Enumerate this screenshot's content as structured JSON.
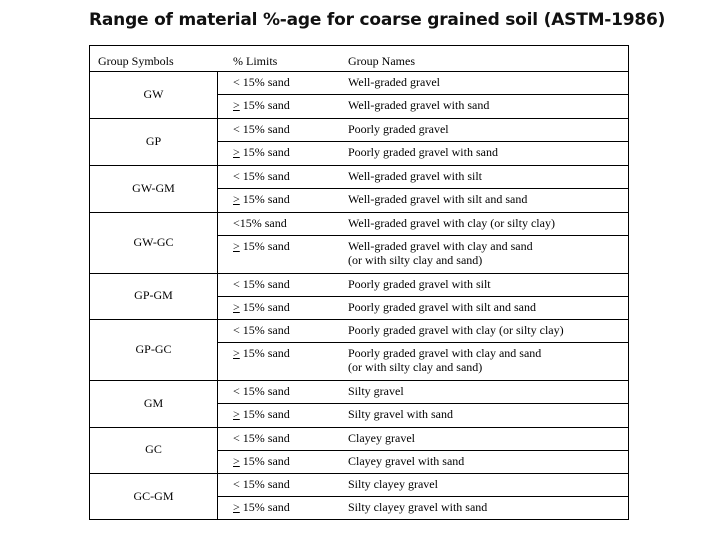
{
  "title": "Range of material %-age for coarse grained soil (ASTM-1986)",
  "headers": {
    "symbols": "Group Symbols",
    "limits": "% Limits",
    "names": "Group Names"
  },
  "groups": [
    {
      "symbol": "GW",
      "rows": [
        {
          "limit": "< 15% sand",
          "name": [
            "Well-graded gravel"
          ]
        },
        {
          "limit": "≥ 15% sand",
          "name": [
            "Well-graded gravel with sand"
          ]
        }
      ]
    },
    {
      "symbol": "GP",
      "rows": [
        {
          "limit": "< 15% sand",
          "name": [
            "Poorly graded gravel"
          ]
        },
        {
          "limit": "≥ 15% sand",
          "name": [
            "Poorly graded gravel with sand"
          ]
        }
      ]
    },
    {
      "symbol": "GW-GM",
      "rows": [
        {
          "limit": "< 15% sand",
          "name": [
            "Well-graded gravel with silt"
          ]
        },
        {
          "limit": "≥ 15% sand",
          "name": [
            "Well-graded gravel with silt and sand"
          ]
        }
      ]
    },
    {
      "symbol": "GW-GC",
      "rows": [
        {
          "limit": "<15% sand",
          "name": [
            "Well-graded gravel with clay (or silty clay)"
          ]
        },
        {
          "limit": "≥ 15% sand",
          "name": [
            "Well-graded gravel with clay and sand",
            "(or with silty clay and sand)"
          ]
        }
      ]
    },
    {
      "symbol": "GP-GM",
      "rows": [
        {
          "limit": "< 15% sand",
          "name": [
            "Poorly graded gravel with silt"
          ]
        },
        {
          "limit": "≥ 15% sand",
          "name": [
            "Poorly graded gravel with silt and sand"
          ]
        }
      ]
    },
    {
      "symbol": "GP-GC",
      "rows": [
        {
          "limit": "< 15% sand",
          "name": [
            "Poorly graded gravel with clay (or silty clay)"
          ]
        },
        {
          "limit": "≥ 15% sand",
          "name": [
            "Poorly graded gravel with clay and sand",
            "(or with silty clay and sand)"
          ]
        }
      ]
    },
    {
      "symbol": "GM",
      "rows": [
        {
          "limit": "< 15% sand",
          "name": [
            "Silty gravel"
          ]
        },
        {
          "limit": "≥ 15% sand",
          "name": [
            "Silty gravel with sand"
          ]
        }
      ]
    },
    {
      "symbol": "GC",
      "rows": [
        {
          "limit": "< 15% sand",
          "name": [
            "Clayey gravel"
          ]
        },
        {
          "limit": "≥ 15% sand",
          "name": [
            "Clayey gravel with sand"
          ]
        }
      ]
    },
    {
      "symbol": "GC-GM",
      "rows": [
        {
          "limit": "< 15% sand",
          "name": [
            "Silty clayey gravel"
          ]
        },
        {
          "limit": "≥ 15% sand",
          "name": [
            "Silty clayey gravel with sand"
          ]
        }
      ]
    }
  ]
}
